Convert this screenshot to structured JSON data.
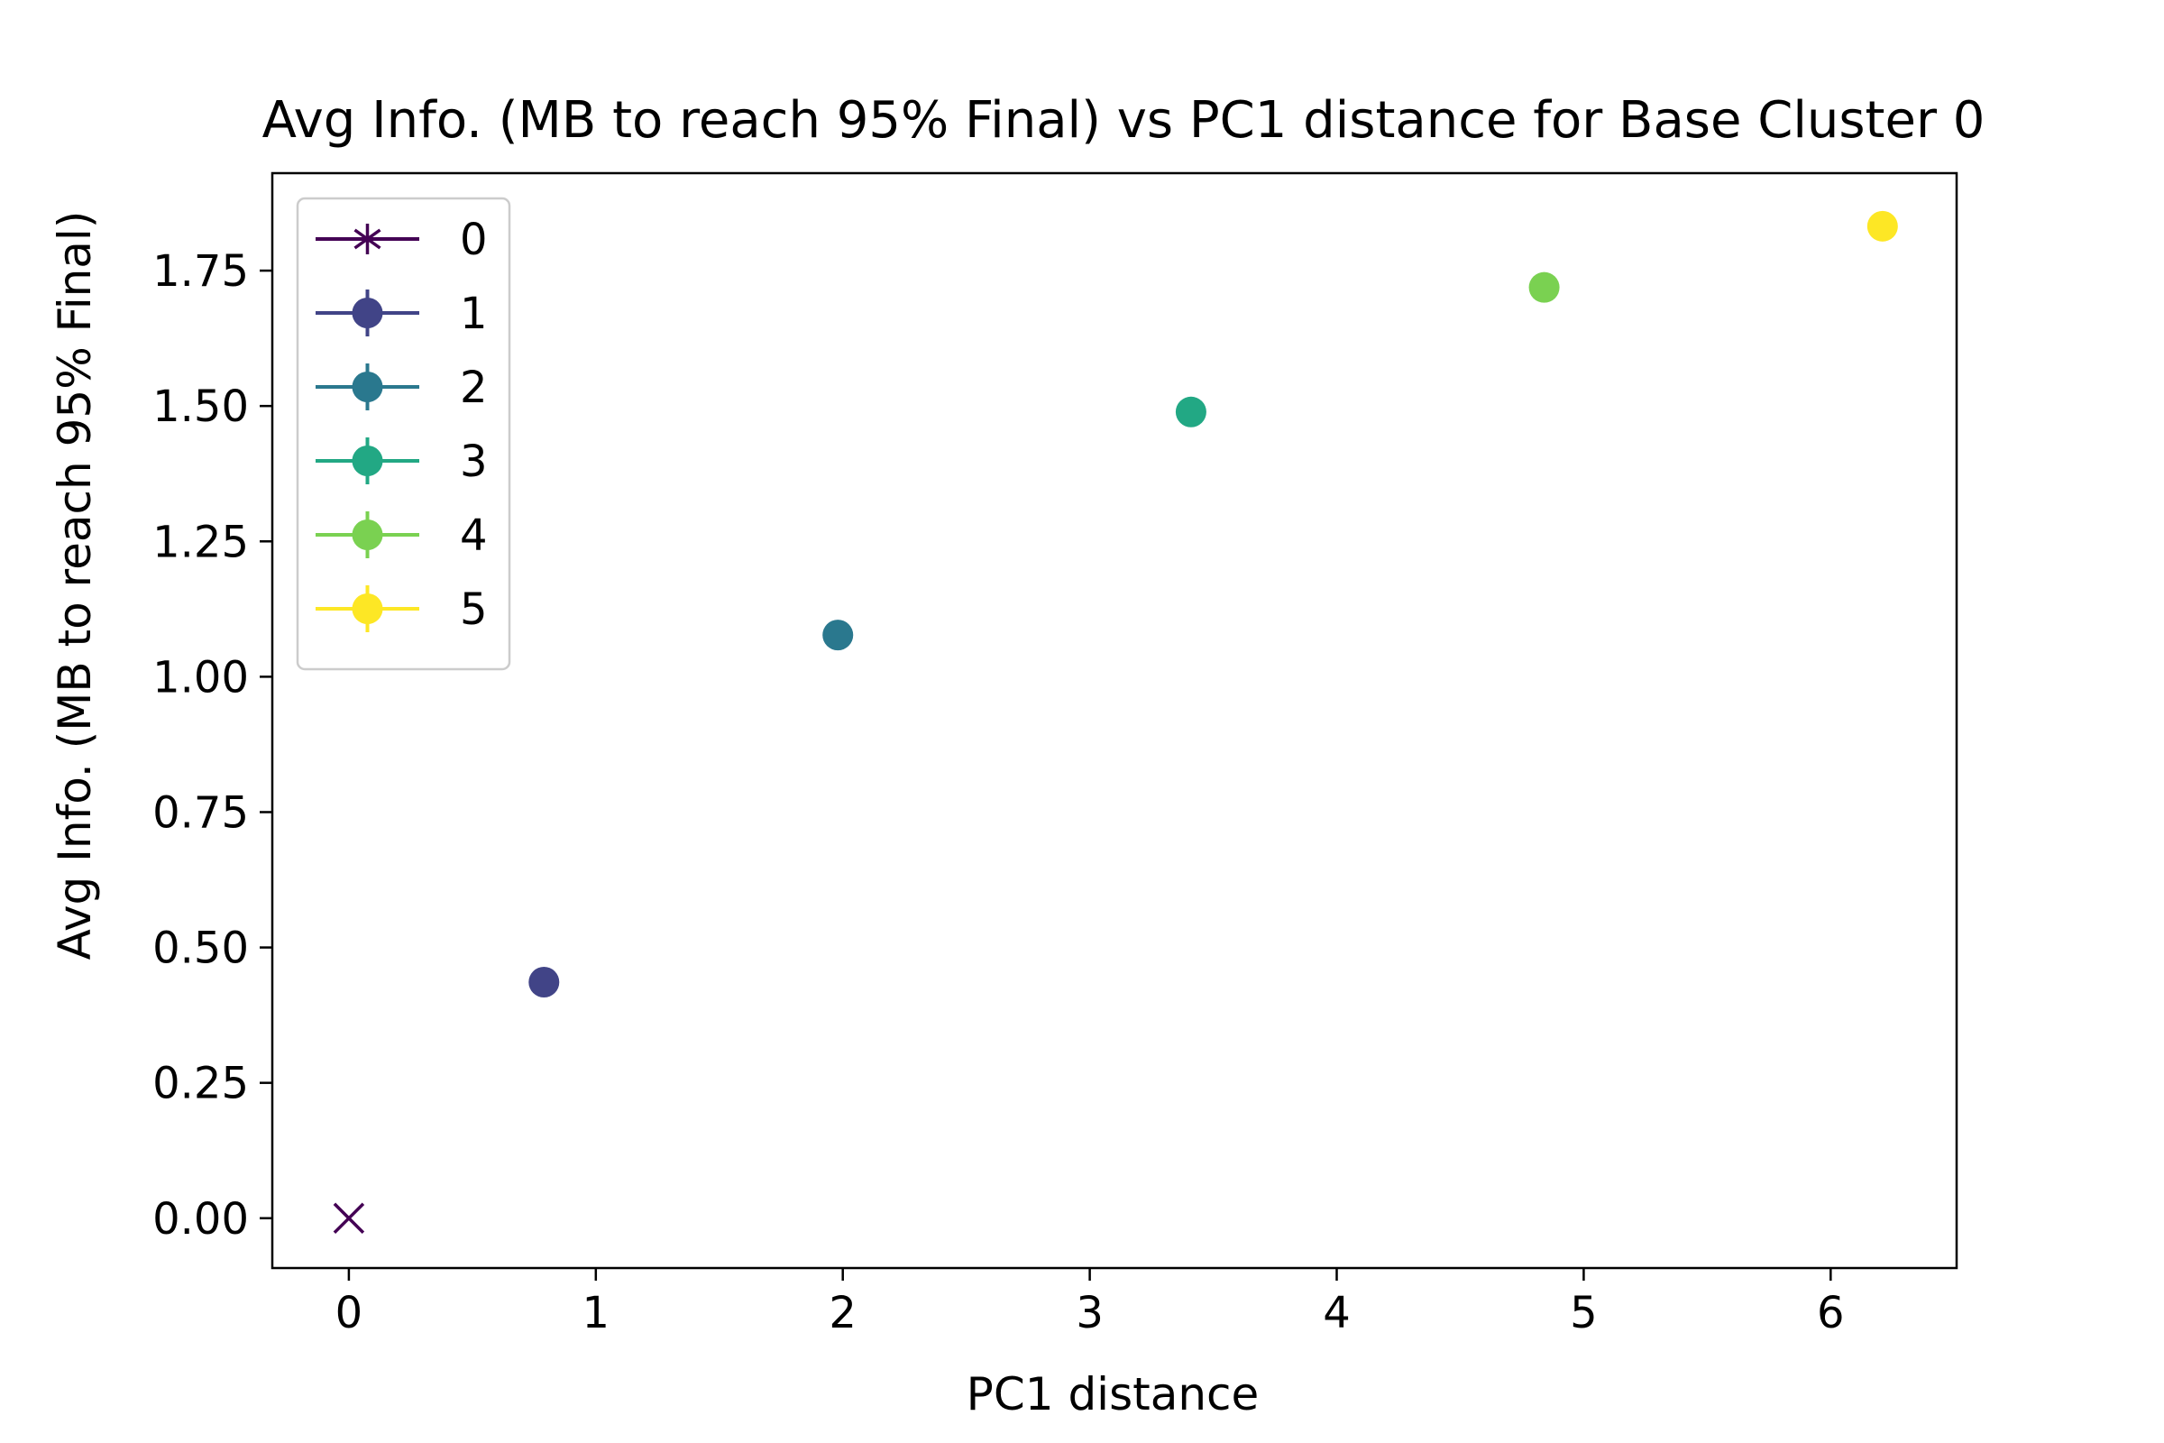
{
  "chart_data": {
    "type": "scatter",
    "title": "Avg Info. (MB to reach 95% Final) vs PC1 distance for Base Cluster 0",
    "xlabel": "PC1 distance",
    "ylabel": "Avg Info. (MB to reach 95% Final)",
    "xlim": [
      -0.31,
      6.51
    ],
    "ylim": [
      -0.092,
      1.93
    ],
    "xticks": [
      0,
      1,
      2,
      3,
      4,
      5,
      6
    ],
    "xtick_labels": [
      "0",
      "1",
      "2",
      "3",
      "4",
      "5",
      "6"
    ],
    "yticks": [
      0.0,
      0.25,
      0.5,
      0.75,
      1.0,
      1.25,
      1.5,
      1.75
    ],
    "ytick_labels": [
      "0.00",
      "0.25",
      "0.50",
      "0.75",
      "1.00",
      "1.25",
      "1.50",
      "1.75"
    ],
    "grid": false,
    "legend_position": "upper-left",
    "series": [
      {
        "name": "0",
        "color": "#440154",
        "marker": "x",
        "legend_marker": "star",
        "points": [
          {
            "x": 0.0,
            "y": 0.0
          }
        ]
      },
      {
        "name": "1",
        "color": "#414487",
        "marker": "circle",
        "legend_marker": "circle",
        "points": [
          {
            "x": 0.79,
            "y": 0.436
          }
        ]
      },
      {
        "name": "2",
        "color": "#2a788e",
        "marker": "circle",
        "legend_marker": "circle",
        "points": [
          {
            "x": 1.98,
            "y": 1.077
          }
        ]
      },
      {
        "name": "3",
        "color": "#22a884",
        "marker": "circle",
        "legend_marker": "circle",
        "points": [
          {
            "x": 3.41,
            "y": 1.489
          }
        ]
      },
      {
        "name": "4",
        "color": "#7ad151",
        "marker": "circle",
        "legend_marker": "circle",
        "points": [
          {
            "x": 4.84,
            "y": 1.719
          }
        ]
      },
      {
        "name": "5",
        "color": "#fde725",
        "marker": "circle",
        "legend_marker": "circle",
        "points": [
          {
            "x": 6.21,
            "y": 1.832
          }
        ]
      }
    ]
  }
}
